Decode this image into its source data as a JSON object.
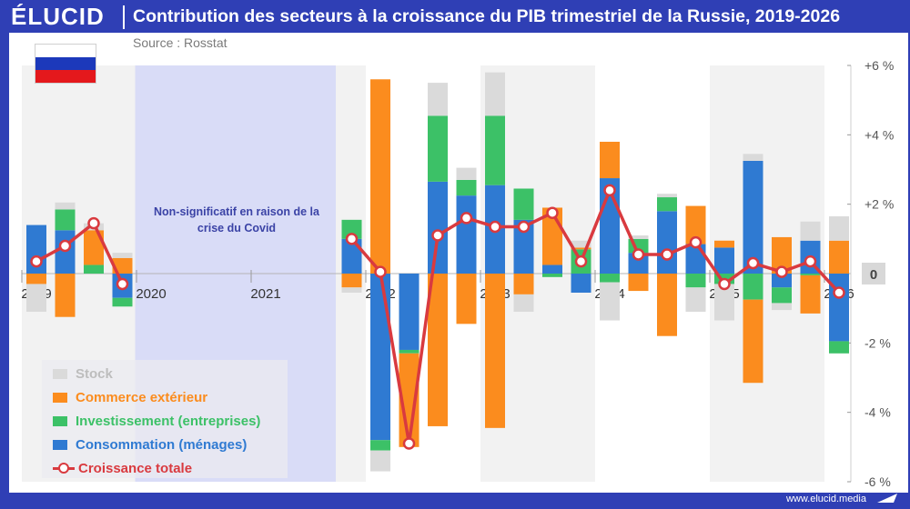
{
  "header": {
    "logo": "ÉLUCID",
    "title": "Contribution des secteurs à la croissance du PIB trimestriel de la Russie, 2019-2026"
  },
  "source": "Source : Rosstat",
  "footer": {
    "url": "www.elucid.media"
  },
  "flag": {
    "colors": [
      "#ffffff",
      "#1c39bb",
      "#e4181c"
    ]
  },
  "covid_note": "Non-significatif en raison de la crise du Covid",
  "colors": {
    "stock": "#dadada",
    "commerce": "#fb8c1e",
    "investissement": "#3cc167",
    "consommation": "#2f7ad2",
    "croissance": "#d93a3f",
    "covid_band": "#d9dcf7",
    "shade_band": "#f2f2f2"
  },
  "legend": {
    "items": [
      {
        "key": "stock",
        "label": "Stock"
      },
      {
        "key": "commerce",
        "label": "Commerce extérieur"
      },
      {
        "key": "investissement",
        "label": "Investissement (entreprises)"
      },
      {
        "key": "consommation",
        "label": "Consommation (ménages)"
      },
      {
        "key": "croissance",
        "label": "Croissance totale"
      }
    ]
  },
  "chart_data": {
    "type": "bar",
    "stacked": true,
    "y_axis": {
      "ylim": [
        -6,
        6
      ],
      "ticks": [
        {
          "value": 6,
          "label": "+6 %"
        },
        {
          "value": 4,
          "label": "+4 %"
        },
        {
          "value": 2,
          "label": "+2 %"
        },
        {
          "value": 0,
          "label": "0"
        },
        {
          "value": -2,
          "label": "-2 %"
        },
        {
          "value": -4,
          "label": "-4 %"
        },
        {
          "value": -6,
          "label": "-6 %"
        }
      ],
      "position": "right"
    },
    "year_labels": [
      "2019",
      "2020",
      "2021",
      "2022",
      "2023",
      "2024",
      "2025",
      "2026"
    ],
    "covid_excluded_range": [
      "2019-Q4",
      "2021-Q3"
    ],
    "quarters": [
      {
        "year": "2019",
        "q": 1,
        "consommation": 1.4,
        "investissement": 0,
        "commerce": -0.3,
        "stock": -0.8,
        "croissance": 0.35
      },
      {
        "year": "2019",
        "q": 2,
        "consommation": 1.25,
        "investissement": 0.6,
        "commerce": -1.25,
        "stock": 0.2,
        "croissance": 0.8
      },
      {
        "year": "2019",
        "q": 3,
        "consommation": 0,
        "investissement": 0.25,
        "commerce": 1.0,
        "stock": 0.2,
        "croissance": 1.45
      },
      {
        "year": "2019",
        "q": 4,
        "consommation": -0.7,
        "investissement": -0.25,
        "commerce": 0.45,
        "stock": 0.15,
        "croissance": -0.3
      },
      {
        "year": "2021",
        "q": 4,
        "consommation": 1.0,
        "investissement": 0.55,
        "commerce": -0.4,
        "stock": -0.15,
        "croissance": 1.0
      },
      {
        "year": "2022",
        "q": 1,
        "consommation": -4.8,
        "investissement": -0.3,
        "commerce": 5.6,
        "stock": -0.6,
        "croissance": 0.05
      },
      {
        "year": "2022",
        "q": 2,
        "consommation": -2.2,
        "investissement": -0.1,
        "commerce": -2.7,
        "stock": 0,
        "croissance": -4.9
      },
      {
        "year": "2022",
        "q": 3,
        "consommation": 2.65,
        "investissement": 1.9,
        "commerce": -4.4,
        "stock": 0.95,
        "croissance": 1.1
      },
      {
        "year": "2022",
        "q": 4,
        "consommation": 2.25,
        "investissement": 0.45,
        "commerce": -1.45,
        "stock": 0.35,
        "croissance": 1.6
      },
      {
        "year": "2023",
        "q": 1,
        "consommation": 2.55,
        "investissement": 2.0,
        "commerce": -4.45,
        "stock": 1.25,
        "croissance": 1.35
      },
      {
        "year": "2023",
        "q": 2,
        "consommation": 1.55,
        "investissement": 0.9,
        "commerce": -0.6,
        "stock": -0.5,
        "croissance": 1.35
      },
      {
        "year": "2023",
        "q": 3,
        "consommation": 0.25,
        "investissement": -0.1,
        "commerce": 1.65,
        "stock": 0,
        "croissance": 1.75
      },
      {
        "year": "2023",
        "q": 4,
        "consommation": -0.55,
        "investissement": 0.7,
        "commerce": 0.05,
        "stock": 0.2,
        "croissance": 0.35
      },
      {
        "year": "2024",
        "q": 1,
        "consommation": 2.75,
        "investissement": -0.25,
        "commerce": 1.05,
        "stock": -1.1,
        "croissance": 2.4
      },
      {
        "year": "2024",
        "q": 2,
        "consommation": 0.6,
        "investissement": 0.4,
        "commerce": -0.5,
        "stock": 0.1,
        "croissance": 0.55
      },
      {
        "year": "2024",
        "q": 3,
        "consommation": 1.8,
        "investissement": 0.4,
        "commerce": -1.8,
        "stock": 0.1,
        "croissance": 0.55
      },
      {
        "year": "2024",
        "q": 4,
        "consommation": 0.85,
        "investissement": -0.4,
        "commerce": 1.1,
        "stock": -0.7,
        "croissance": 0.9
      },
      {
        "year": "2025",
        "q": 1,
        "consommation": 0.75,
        "investissement": -0.3,
        "commerce": 0.2,
        "stock": -1.05,
        "croissance": -0.3
      },
      {
        "year": "2025",
        "q": 2,
        "consommation": 3.25,
        "investissement": -0.75,
        "commerce": -2.4,
        "stock": 0.2,
        "croissance": 0.3
      },
      {
        "year": "2025",
        "q": 3,
        "consommation": -0.4,
        "investissement": -0.45,
        "commerce": 1.05,
        "stock": -0.2,
        "croissance": 0.05
      },
      {
        "year": "2025",
        "q": 4,
        "consommation": 0.95,
        "investissement": -0.05,
        "commerce": -1.1,
        "stock": 0.55,
        "croissance": 0.35
      },
      {
        "year": "2026",
        "q": 1,
        "consommation": -1.95,
        "investissement": -0.35,
        "commerce": 0.95,
        "stock": 0.7,
        "croissance": -0.55
      }
    ]
  }
}
